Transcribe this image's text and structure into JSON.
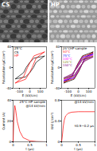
{
  "images": [
    {
      "label": "CS"
    },
    {
      "label": "HP"
    }
  ],
  "chart_data": [
    {
      "type": "line",
      "title": "25°C",
      "x_label": "E (kV/cm)",
      "y_label": "Polarization (μC/cm²)",
      "xlim": [
        -160,
        160
      ],
      "xticks": [
        -100,
        0,
        100
      ],
      "ylim": [
        -40,
        40
      ],
      "yticks": [
        -40,
        0,
        40
      ],
      "legend": "top-left",
      "series": [
        {
          "name": "CS",
          "color": "#000000",
          "x": [
            140,
            40,
            0,
            -35,
            -60,
            -140,
            -40,
            0,
            35,
            60,
            140
          ],
          "y": [
            22,
            18,
            10,
            0,
            -10,
            -22,
            -18,
            -10,
            0,
            10,
            22
          ]
        },
        {
          "name": "HP",
          "color": "#ff0000",
          "x": [
            140,
            40,
            0,
            -22,
            -60,
            -140,
            -40,
            0,
            22,
            60,
            140
          ],
          "y": [
            30,
            22.5,
            9,
            0,
            -18,
            -30,
            -22.5,
            -9,
            0,
            18,
            30
          ]
        }
      ]
    },
    {
      "type": "line",
      "title": "HP sample",
      "x_label": "E (kV/cm)",
      "y_label": "Polarization (μC/cm²)",
      "xlim": [
        -160,
        160
      ],
      "xticks": [
        -100,
        0,
        100
      ],
      "ylim": [
        -40,
        40
      ],
      "yticks": [
        -40,
        0,
        40
      ],
      "legend": "top-left",
      "series": [
        {
          "name": "25°C",
          "color": "#000000",
          "x": [
            140,
            40,
            0,
            -22,
            -60,
            -140,
            -40,
            0,
            22,
            60,
            140
          ],
          "y": [
            30,
            22.5,
            9,
            0,
            -18,
            -30,
            -22.5,
            -9,
            0,
            18,
            30
          ]
        },
        {
          "name": "50°C",
          "color": "#ff0000",
          "x": [
            140,
            40,
            0,
            -20,
            -60,
            -140,
            -40,
            0,
            20,
            60,
            140
          ],
          "y": [
            28,
            21,
            8,
            0,
            -17,
            -28,
            -21,
            -8,
            0,
            17,
            28
          ]
        },
        {
          "name": "75°C",
          "color": "#0000ff",
          "x": [
            140,
            40,
            0,
            -17,
            -60,
            -140,
            -40,
            0,
            17,
            60,
            140
          ],
          "y": [
            26,
            19.5,
            6,
            0,
            -15.5,
            -26,
            -19.5,
            -6,
            0,
            15.5,
            26
          ]
        },
        {
          "name": "100°C",
          "color": "#ff00ff",
          "x": [
            140,
            40,
            0,
            -14,
            -60,
            -140,
            -40,
            0,
            14,
            60,
            140
          ],
          "y": [
            24,
            18,
            5,
            0,
            -14.5,
            -24,
            -18,
            -5,
            0,
            14.5,
            24
          ]
        },
        {
          "name": "125°C",
          "color": "#808000",
          "x": [
            140,
            40,
            0,
            -12,
            -60,
            -140,
            -40,
            0,
            12,
            60,
            140
          ],
          "y": [
            22,
            16.5,
            4,
            0,
            -13,
            -22,
            -16.5,
            -4,
            0,
            13,
            22
          ]
        },
        {
          "name": "150°C",
          "color": "#800080",
          "x": [
            140,
            40,
            0,
            -10,
            -60,
            -140,
            -40,
            0,
            10,
            60,
            140
          ],
          "y": [
            20,
            15,
            3,
            0,
            -12,
            -20,
            -15,
            -3,
            0,
            12,
            20
          ]
        }
      ]
    },
    {
      "type": "line",
      "x_label": "t (μs)",
      "y_label": "Current (A)",
      "annotations": [
        "25°C HP sample",
        "@14 kV/mm"
      ],
      "xlim": [
        0,
        1
      ],
      "xticks": [
        0,
        0.5,
        1
      ],
      "ylim": [
        0,
        40
      ],
      "yticks": [
        0,
        20,
        40
      ],
      "series": [
        {
          "color": "#ff0000",
          "x": [
            0,
            0.02,
            0.05,
            0.08,
            0.12,
            0.2,
            0.3,
            0.5,
            0.7,
            1
          ],
          "y": [
            0,
            20,
            35,
            30,
            20,
            10,
            4,
            1,
            0.3,
            0
          ]
        }
      ]
    },
    {
      "type": "line",
      "x_label": "t (μs)",
      "y_label": "Wd (J/cm³)",
      "annotations": [
        "@14 kV/mm",
        "τ0.9~0.2 μs"
      ],
      "xlim": [
        0,
        1
      ],
      "xticks": [
        0,
        0.5,
        1
      ],
      "ylim": [
        0,
        0.8
      ],
      "yticks": [
        0,
        0.4,
        0.8
      ],
      "series": [
        {
          "color": "#ff0000",
          "x": [
            0,
            0.02,
            0.05,
            0.08,
            0.12,
            0.2,
            0.3,
            0.5,
            0.7,
            1
          ],
          "y": [
            0,
            0.1,
            0.3,
            0.42,
            0.5,
            0.55,
            0.57,
            0.58,
            0.58,
            0.58
          ]
        }
      ]
    }
  ]
}
